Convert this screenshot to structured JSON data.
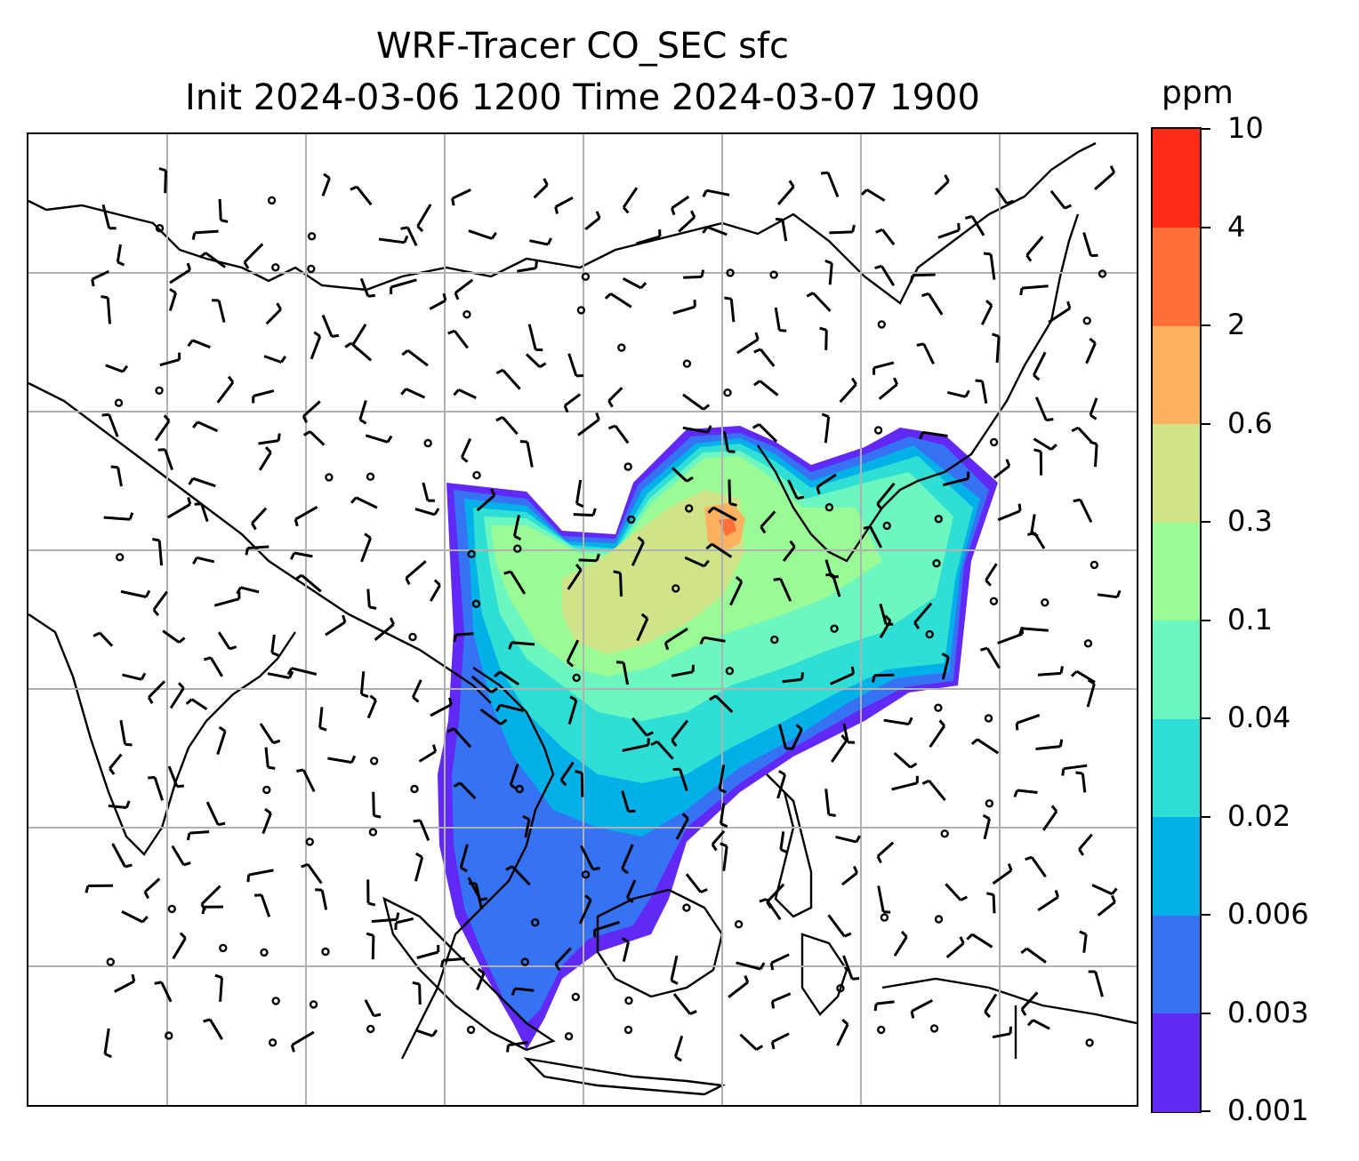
{
  "title": {
    "line1": "WRF-Tracer CO_SEC sfc",
    "line2": "Init 2024-03-06 1200 Time 2024-03-07 1900"
  },
  "colorbar": {
    "unit": "ppm",
    "tick_labels": [
      "0.001",
      "0.003",
      "0.006",
      "0.02",
      "0.04",
      "0.1",
      "0.3",
      "0.6",
      "2",
      "4",
      "10"
    ],
    "band_colors": [
      "#6128f6",
      "#3573f4",
      "#04b0e8",
      "#2fdfd6",
      "#6bf7bf",
      "#9afa96",
      "#cfe389",
      "#fbb15e",
      "#fe6f39",
      "#ff2b18"
    ]
  },
  "map": {
    "grid": true,
    "coastlines": true,
    "wind_barbs": true,
    "field": "CO_SEC",
    "field_colors": {
      "c1": "#6128f6",
      "c2": "#3573f4",
      "c3": "#04b0e8",
      "c4": "#2fdfd6",
      "c5": "#6bf7bf",
      "c6": "#9afa96",
      "c7": "#cfe389",
      "c8": "#fbb15e",
      "c9": "#fe6f39"
    }
  }
}
